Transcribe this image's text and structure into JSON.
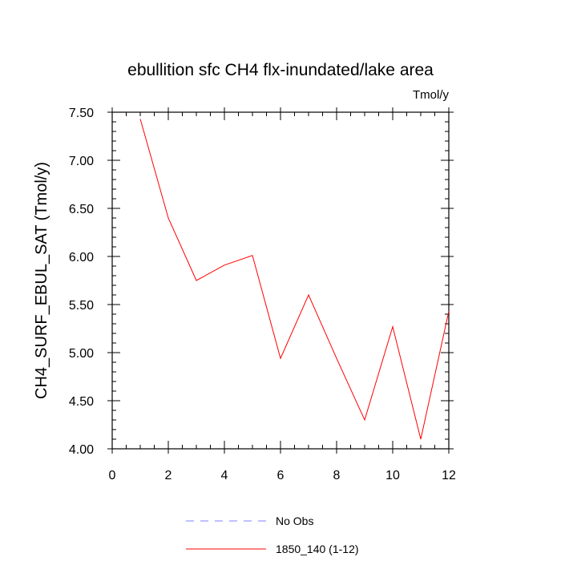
{
  "chart_data": {
    "type": "line",
    "title": "ebullition sfc CH4 flx-inundated/lake area",
    "units_label": "Tmol/y",
    "xlabel": "",
    "ylabel": "CH4_SURF_EBUL_SAT  (Tmol/y)",
    "xlim": [
      0,
      12
    ],
    "ylim": [
      4.0,
      7.5
    ],
    "x_ticks": [
      0,
      2,
      4,
      6,
      8,
      10,
      12
    ],
    "y_ticks": [
      4.0,
      4.5,
      5.0,
      5.5,
      6.0,
      6.5,
      7.0,
      7.5
    ],
    "y_tick_labels": [
      "4.00",
      "4.50",
      "5.00",
      "5.50",
      "6.00",
      "6.50",
      "7.00",
      "7.50"
    ],
    "grid": false,
    "legend_position": "bottom-center",
    "series": [
      {
        "name": "No Obs",
        "style": "dashed",
        "color": "#8080ff",
        "x": [],
        "y": []
      },
      {
        "name": "1850_140 (1-12)",
        "style": "solid",
        "color": "#ff0000",
        "x": [
          1,
          2,
          3,
          4,
          5,
          6,
          7,
          8,
          9,
          10,
          11,
          12
        ],
        "y": [
          7.43,
          6.4,
          5.75,
          5.91,
          6.01,
          4.94,
          5.6,
          4.94,
          4.3,
          5.27,
          4.1,
          5.43
        ]
      }
    ]
  }
}
